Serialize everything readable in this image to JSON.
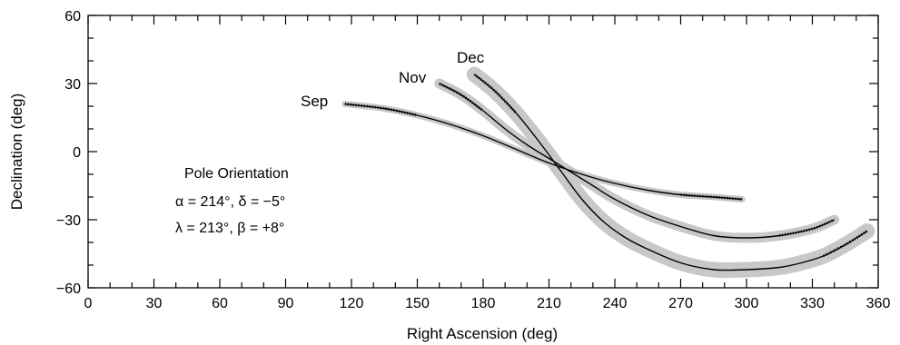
{
  "chart_data": {
    "type": "line",
    "title": "",
    "xlabel": "Right Ascension (deg)",
    "ylabel": "Declination (deg)",
    "xlim": [
      0,
      360
    ],
    "ylim": [
      -60,
      60
    ],
    "xticks": [
      0,
      30,
      60,
      90,
      120,
      150,
      180,
      210,
      240,
      270,
      300,
      330,
      360
    ],
    "yticks": [
      -60,
      -30,
      0,
      30,
      60
    ],
    "x_tick_labels": [
      "0",
      "30",
      "60",
      "90",
      "120",
      "150",
      "180",
      "210",
      "240",
      "270",
      "300",
      "330",
      "360"
    ],
    "y_tick_labels": [
      "−60",
      "−30",
      "0",
      "30",
      "60"
    ],
    "grid": false,
    "series": [
      {
        "name": "Sep",
        "x": [
          117,
          135,
          150,
          165,
          180,
          195,
          210,
          225,
          240,
          255,
          270,
          285,
          298
        ],
        "y": [
          21,
          19,
          16,
          12,
          7,
          1,
          -5,
          -10,
          -14,
          -17,
          -19,
          -20,
          -21
        ]
      },
      {
        "name": "Nov",
        "x": [
          160,
          170,
          180,
          190,
          200,
          210,
          220,
          230,
          240,
          255,
          270,
          285,
          300,
          315,
          330,
          340
        ],
        "y": [
          30,
          25,
          18,
          10,
          3,
          -3,
          -9,
          -15,
          -21,
          -28,
          -33,
          -37,
          -38,
          -37,
          -34,
          -30
        ]
      },
      {
        "name": "Dec",
        "x": [
          176,
          185,
          195,
          205,
          215,
          225,
          235,
          245,
          255,
          270,
          285,
          300,
          315,
          325,
          335,
          345,
          355
        ],
        "y": [
          34,
          27,
          17,
          5,
          -8,
          -21,
          -31,
          -38,
          -43,
          -49,
          -52,
          -52,
          -51,
          -49,
          -46,
          -41,
          -35
        ]
      }
    ],
    "annotations": {
      "heading": "Pole Orientation",
      "line1": "α = 214°, δ = −5°",
      "line2": "λ = 213°, β = +8°"
    },
    "colors": {
      "band": "#c8c8c8",
      "line": "#000000"
    }
  }
}
